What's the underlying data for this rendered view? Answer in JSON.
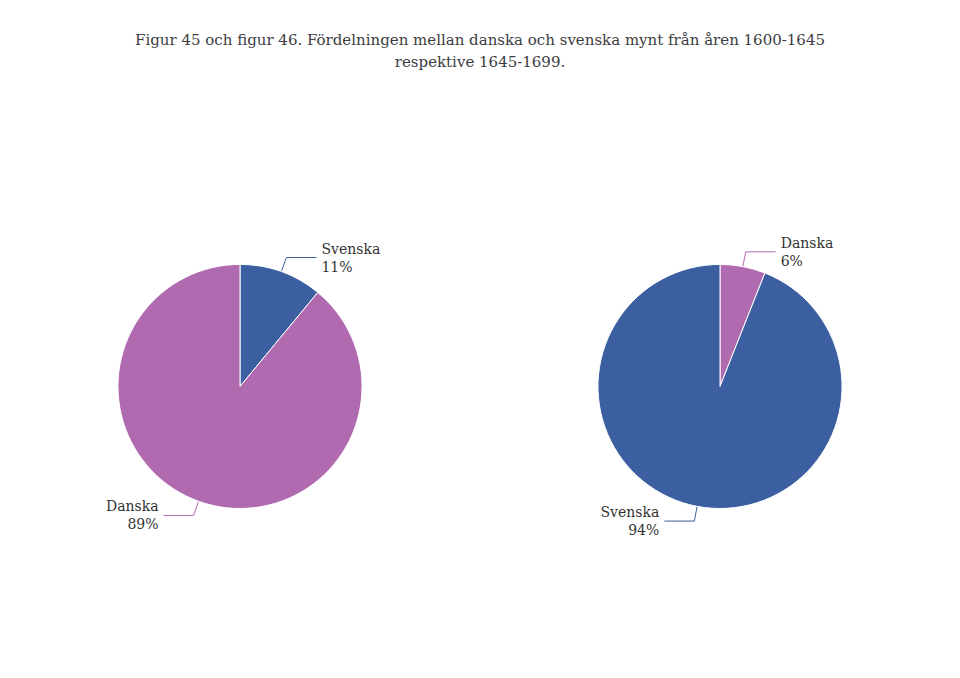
{
  "chart_data": [
    {
      "type": "pie",
      "title": "Figur 45 och figur 46. Fördelningen mellan danska och svenska mynt från åren 1600-1645\nrespektive 1645-1699.",
      "categories": [
        "Svenska",
        "Danska"
      ],
      "values": [
        11,
        89
      ],
      "value_labels": [
        "11%",
        "89%"
      ],
      "colors": [
        "#3b5fa0",
        "#b06ab0"
      ],
      "data_labels": true
    },
    {
      "type": "pie",
      "categories": [
        "Danska",
        "Svenska"
      ],
      "values": [
        6,
        94
      ],
      "value_labels": [
        "6%",
        "94%"
      ],
      "colors": [
        "#b06ab0",
        "#3b5fa0"
      ],
      "data_labels": true
    }
  ]
}
